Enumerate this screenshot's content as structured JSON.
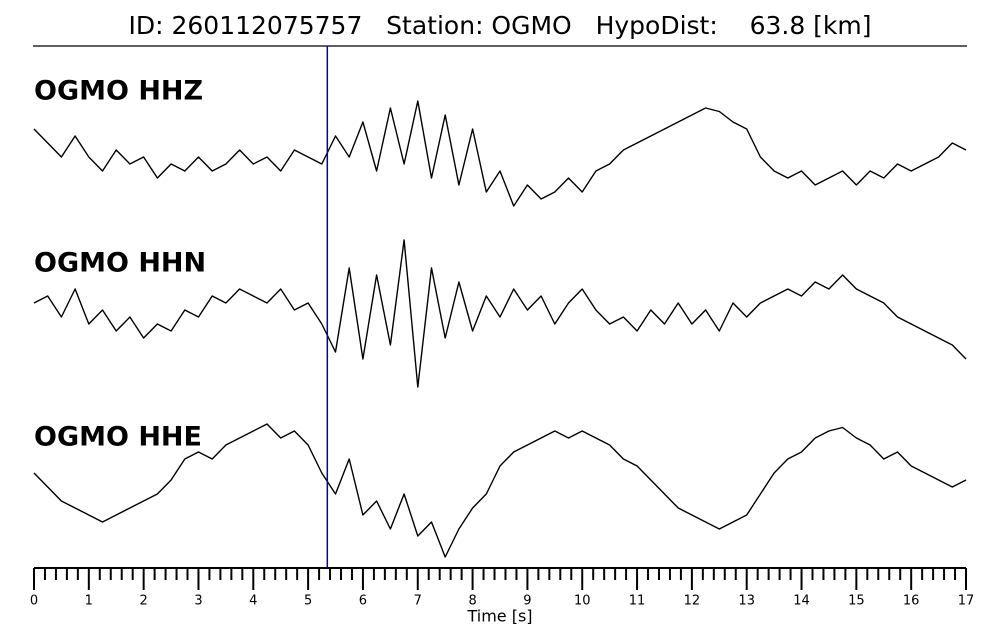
{
  "chart_data": {
    "type": "seismogram",
    "title": "ID: 260112075757   Station: OGMO   HypoDist:    63.8 [km]",
    "xlabel": "Time [s]",
    "xlim": [
      0,
      17
    ],
    "xticks": [
      0,
      1,
      2,
      3,
      4,
      5,
      6,
      7,
      8,
      9,
      10,
      11,
      12,
      13,
      14,
      15,
      16,
      17
    ],
    "xminorticks": [
      0.2,
      0.4,
      0.6,
      0.8,
      1.2,
      1.4,
      1.6,
      1.8,
      2.2,
      2.4,
      2.6,
      2.8,
      3.2,
      3.4,
      3.6,
      3.8,
      4.2,
      4.4,
      4.6,
      4.8,
      5.2,
      5.4,
      5.6,
      5.8,
      6.2,
      6.4,
      6.6,
      6.8,
      7.2,
      7.4,
      7.6,
      7.8,
      8.2,
      8.4,
      8.6,
      8.8,
      9.2,
      9.4,
      9.6,
      9.8,
      10.2,
      10.4,
      10.6,
      10.8,
      11.2,
      11.4,
      11.6,
      11.8,
      12.2,
      12.4,
      12.6,
      12.8,
      13.2,
      13.4,
      13.6,
      13.8,
      14.2,
      14.4,
      14.6,
      14.8,
      15.2,
      15.4,
      15.6,
      15.8,
      16.2,
      16.4,
      16.6,
      16.8
    ],
    "ylim": [
      -1,
      1
    ],
    "pick_time": 5.35,
    "pick_color": "#0000cc",
    "label_color": "#4c9a0a",
    "trace_color": "#000000",
    "x": [
      0,
      0.25,
      0.5,
      0.75,
      1,
      1.25,
      1.5,
      1.75,
      2,
      2.25,
      2.5,
      2.75,
      3,
      3.25,
      3.5,
      3.75,
      4,
      4.25,
      4.5,
      4.75,
      5,
      5.25,
      5.5,
      5.75,
      6,
      6.25,
      6.5,
      6.75,
      7,
      7.25,
      7.5,
      7.75,
      8,
      8.25,
      8.5,
      8.75,
      9,
      9.25,
      9.5,
      9.75,
      10,
      10.25,
      10.5,
      10.75,
      11,
      11.25,
      11.5,
      11.75,
      12,
      12.25,
      12.5,
      12.75,
      13,
      13.25,
      13.5,
      13.75,
      14,
      14.25,
      14.5,
      14.75,
      15,
      15.25,
      15.5,
      15.75,
      16,
      16.25,
      16.5,
      16.75,
      17
    ],
    "series": [
      {
        "name": "OGMO HHZ",
        "values": [
          0.3,
          0.1,
          -0.1,
          0.2,
          -0.1,
          -0.3,
          0.0,
          -0.2,
          -0.1,
          -0.4,
          -0.2,
          -0.3,
          -0.1,
          -0.3,
          -0.2,
          0.0,
          -0.2,
          -0.1,
          -0.3,
          0.0,
          -0.1,
          -0.2,
          0.2,
          -0.1,
          0.4,
          -0.3,
          0.6,
          -0.2,
          0.7,
          -0.4,
          0.5,
          -0.5,
          0.3,
          -0.6,
          -0.3,
          -0.8,
          -0.5,
          -0.7,
          -0.6,
          -0.4,
          -0.6,
          -0.3,
          -0.2,
          0.0,
          0.1,
          0.2,
          0.3,
          0.4,
          0.5,
          0.6,
          0.55,
          0.4,
          0.3,
          -0.1,
          -0.3,
          -0.4,
          -0.3,
          -0.5,
          -0.4,
          -0.3,
          -0.5,
          -0.3,
          -0.4,
          -0.2,
          -0.3,
          -0.2,
          -0.1,
          0.1,
          0.0
        ]
      },
      {
        "name": "OGMO HHN",
        "values": [
          0.1,
          0.2,
          -0.1,
          0.3,
          -0.2,
          0.0,
          -0.3,
          -0.1,
          -0.4,
          -0.2,
          -0.3,
          0.0,
          -0.1,
          0.2,
          0.1,
          0.3,
          0.2,
          0.1,
          0.3,
          0.0,
          0.1,
          -0.2,
          -0.6,
          0.6,
          -0.7,
          0.5,
          -0.5,
          1.0,
          -1.1,
          0.6,
          -0.4,
          0.4,
          -0.3,
          0.2,
          -0.1,
          0.3,
          0.0,
          0.2,
          -0.2,
          0.1,
          0.3,
          0.0,
          -0.2,
          -0.1,
          -0.3,
          0.0,
          -0.2,
          0.1,
          -0.2,
          0.0,
          -0.3,
          0.1,
          -0.1,
          0.1,
          0.2,
          0.3,
          0.2,
          0.4,
          0.3,
          0.5,
          0.3,
          0.2,
          0.1,
          -0.1,
          -0.2,
          -0.3,
          -0.4,
          -0.5,
          -0.7
        ]
      },
      {
        "name": "OGMO HHE",
        "values": [
          0.1,
          -0.1,
          -0.3,
          -0.4,
          -0.5,
          -0.6,
          -0.5,
          -0.4,
          -0.3,
          -0.2,
          0.0,
          0.3,
          0.4,
          0.3,
          0.5,
          0.6,
          0.7,
          0.8,
          0.6,
          0.7,
          0.5,
          0.1,
          -0.2,
          0.3,
          -0.5,
          -0.3,
          -0.7,
          -0.2,
          -0.8,
          -0.6,
          -1.1,
          -0.7,
          -0.4,
          -0.2,
          0.2,
          0.4,
          0.5,
          0.6,
          0.7,
          0.6,
          0.7,
          0.6,
          0.5,
          0.3,
          0.2,
          0.0,
          -0.2,
          -0.4,
          -0.5,
          -0.6,
          -0.7,
          -0.6,
          -0.5,
          -0.2,
          0.1,
          0.3,
          0.4,
          0.6,
          0.7,
          0.75,
          0.6,
          0.5,
          0.3,
          0.4,
          0.2,
          0.1,
          0.0,
          -0.1,
          0.0
        ]
      }
    ]
  }
}
